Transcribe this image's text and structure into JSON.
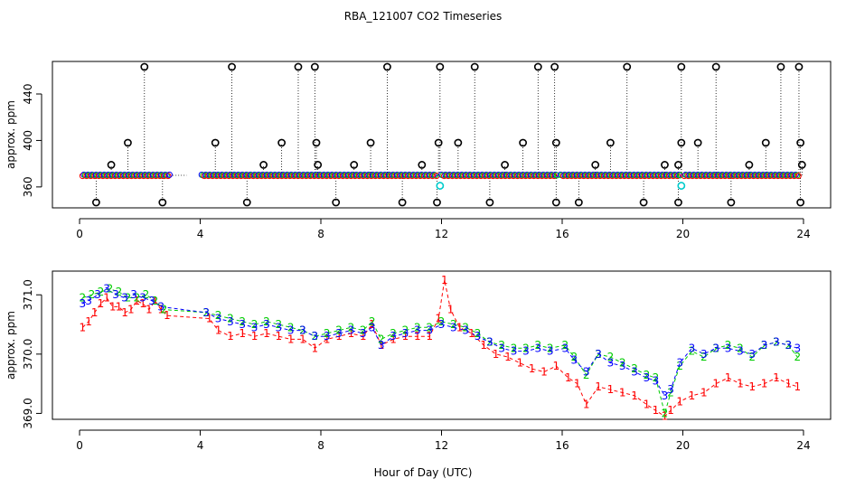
{
  "figure": {
    "title": "RBA_121007  CO2 Timeseries",
    "xlabel": "Hour of Day (UTC)"
  },
  "colors": {
    "series1": "#ff0000",
    "series2": "#00cc00",
    "series3": "#0000ff",
    "outlier": "#000000",
    "cyan": "#00cccc",
    "axis": "#000000"
  },
  "chart_data": [
    {
      "type": "scatter",
      "title": "",
      "xlabel": "",
      "ylabel": "approx. ppm",
      "xlim": [
        -0.9,
        24.9
      ],
      "ylim": [
        342,
        468
      ],
      "xticks": [
        0,
        4,
        8,
        12,
        16,
        20,
        24
      ],
      "yticks": [
        360,
        400,
        440
      ],
      "base_level": 370,
      "base_segments": [
        [
          0.1,
          3.0
        ],
        [
          4.05,
          11.85
        ],
        [
          12.0,
          15.85
        ],
        [
          15.95,
          19.95
        ],
        [
          20.05,
          23.85
        ]
      ],
      "gap_line": [
        3.0,
        3.55
      ],
      "low_markers": [
        0.55,
        2.75,
        5.55,
        8.5,
        10.7,
        11.85,
        13.6,
        15.8,
        16.55,
        18.7,
        19.85,
        21.6,
        23.9
      ],
      "high_markers": [
        2.15,
        5.05,
        7.25,
        7.8,
        10.2,
        11.95,
        13.1,
        15.2,
        15.75,
        18.15,
        19.95,
        21.1,
        23.25,
        23.85
      ],
      "mid_markers": [
        {
          "x": 1.6,
          "y": 398
        },
        {
          "x": 4.5,
          "y": 398
        },
        {
          "x": 6.7,
          "y": 398
        },
        {
          "x": 7.85,
          "y": 398
        },
        {
          "x": 9.65,
          "y": 398
        },
        {
          "x": 11.9,
          "y": 398
        },
        {
          "x": 12.55,
          "y": 398
        },
        {
          "x": 14.7,
          "y": 398
        },
        {
          "x": 15.8,
          "y": 398
        },
        {
          "x": 17.6,
          "y": 398
        },
        {
          "x": 19.95,
          "y": 398
        },
        {
          "x": 20.5,
          "y": 398
        },
        {
          "x": 22.75,
          "y": 398
        },
        {
          "x": 23.9,
          "y": 398
        },
        {
          "x": 1.05,
          "y": 379
        },
        {
          "x": 6.1,
          "y": 379
        },
        {
          "x": 7.9,
          "y": 379
        },
        {
          "x": 9.1,
          "y": 379
        },
        {
          "x": 11.35,
          "y": 379
        },
        {
          "x": 14.1,
          "y": 379
        },
        {
          "x": 17.1,
          "y": 379
        },
        {
          "x": 19.4,
          "y": 379
        },
        {
          "x": 19.85,
          "y": 379
        },
        {
          "x": 22.2,
          "y": 379
        },
        {
          "x": 23.95,
          "y": 379
        }
      ],
      "cyan_markers": [
        {
          "x": 11.95,
          "y": 361
        },
        {
          "x": 19.95,
          "y": 361
        }
      ]
    },
    {
      "type": "line",
      "title": "",
      "xlabel": "Hour of Day (UTC)",
      "ylabel": "approx. ppm",
      "xlim": [
        -0.9,
        24.9
      ],
      "ylim": [
        368.9,
        371.4
      ],
      "xticks": [
        0,
        4,
        8,
        12,
        16,
        20,
        24
      ],
      "yticks": [
        369.0,
        370.0,
        371.0
      ],
      "ytick_labels": [
        "369.0",
        "370.0",
        "371.0"
      ],
      "series": [
        {
          "name": "1",
          "label": "1",
          "points": [
            [
              0.1,
              370.45
            ],
            [
              0.3,
              370.55
            ],
            [
              0.5,
              370.7
            ],
            [
              0.7,
              370.85
            ],
            [
              0.9,
              370.95
            ],
            [
              1.1,
              370.8
            ],
            [
              1.3,
              370.8
            ],
            [
              1.5,
              370.7
            ],
            [
              1.7,
              370.75
            ],
            [
              1.9,
              370.9
            ],
            [
              2.1,
              370.85
            ],
            [
              2.3,
              370.75
            ],
            [
              2.5,
              370.9
            ],
            [
              2.7,
              370.75
            ],
            [
              2.9,
              370.65
            ],
            [
              4.3,
              370.6
            ],
            [
              4.6,
              370.4
            ],
            [
              5.0,
              370.3
            ],
            [
              5.4,
              370.35
            ],
            [
              5.8,
              370.3
            ],
            [
              6.2,
              370.35
            ],
            [
              6.6,
              370.3
            ],
            [
              7.0,
              370.25
            ],
            [
              7.4,
              370.25
            ],
            [
              7.8,
              370.1
            ],
            [
              8.2,
              370.25
            ],
            [
              8.6,
              370.3
            ],
            [
              9.0,
              370.35
            ],
            [
              9.4,
              370.3
            ],
            [
              9.7,
              370.5
            ],
            [
              10.0,
              370.15
            ],
            [
              10.4,
              370.25
            ],
            [
              10.8,
              370.3
            ],
            [
              11.2,
              370.3
            ],
            [
              11.6,
              370.3
            ],
            [
              11.9,
              370.6
            ],
            [
              12.1,
              371.25
            ],
            [
              12.3,
              370.75
            ],
            [
              12.6,
              370.45
            ],
            [
              13.0,
              370.35
            ],
            [
              13.4,
              370.15
            ],
            [
              13.8,
              370.0
            ],
            [
              14.2,
              369.95
            ],
            [
              14.6,
              369.85
            ],
            [
              15.0,
              369.75
            ],
            [
              15.4,
              369.7
            ],
            [
              15.8,
              369.8
            ],
            [
              16.2,
              369.6
            ],
            [
              16.5,
              369.5
            ],
            [
              16.8,
              369.15
            ],
            [
              17.2,
              369.45
            ],
            [
              17.6,
              369.4
            ],
            [
              18.0,
              369.35
            ],
            [
              18.4,
              369.3
            ],
            [
              18.8,
              369.15
            ],
            [
              19.1,
              369.05
            ],
            [
              19.4,
              368.95
            ],
            [
              19.6,
              369.05
            ],
            [
              19.9,
              369.2
            ],
            [
              20.3,
              369.3
            ],
            [
              20.7,
              369.35
            ],
            [
              21.1,
              369.5
            ],
            [
              21.5,
              369.6
            ],
            [
              21.9,
              369.5
            ],
            [
              22.3,
              369.45
            ],
            [
              22.7,
              369.5
            ],
            [
              23.1,
              369.6
            ],
            [
              23.5,
              369.5
            ],
            [
              23.8,
              369.45
            ]
          ]
        },
        {
          "name": "2",
          "label": "2",
          "points": [
            [
              0.1,
              370.95
            ],
            [
              0.4,
              371.0
            ],
            [
              0.7,
              371.05
            ],
            [
              1.0,
              371.1
            ],
            [
              1.3,
              371.05
            ],
            [
              1.6,
              370.95
            ],
            [
              1.9,
              370.95
            ],
            [
              2.2,
              371.0
            ],
            [
              2.5,
              370.9
            ],
            [
              2.8,
              370.75
            ],
            [
              4.2,
              370.7
            ],
            [
              4.6,
              370.65
            ],
            [
              5.0,
              370.6
            ],
            [
              5.4,
              370.55
            ],
            [
              5.8,
              370.5
            ],
            [
              6.2,
              370.55
            ],
            [
              6.6,
              370.5
            ],
            [
              7.0,
              370.45
            ],
            [
              7.4,
              370.4
            ],
            [
              7.8,
              370.3
            ],
            [
              8.2,
              370.35
            ],
            [
              8.6,
              370.4
            ],
            [
              9.0,
              370.45
            ],
            [
              9.4,
              370.4
            ],
            [
              9.7,
              370.55
            ],
            [
              10.0,
              370.25
            ],
            [
              10.4,
              370.35
            ],
            [
              10.8,
              370.4
            ],
            [
              11.2,
              370.45
            ],
            [
              11.6,
              370.45
            ],
            [
              12.0,
              370.55
            ],
            [
              12.4,
              370.5
            ],
            [
              12.8,
              370.45
            ],
            [
              13.2,
              370.35
            ],
            [
              13.6,
              370.2
            ],
            [
              14.0,
              370.15
            ],
            [
              14.4,
              370.1
            ],
            [
              14.8,
              370.1
            ],
            [
              15.2,
              370.15
            ],
            [
              15.6,
              370.1
            ],
            [
              16.1,
              370.15
            ],
            [
              16.4,
              369.95
            ],
            [
              16.8,
              369.65
            ],
            [
              17.2,
              370.0
            ],
            [
              17.6,
              369.95
            ],
            [
              18.0,
              369.85
            ],
            [
              18.4,
              369.75
            ],
            [
              18.8,
              369.65
            ],
            [
              19.1,
              369.6
            ],
            [
              19.4,
              369.0
            ],
            [
              19.6,
              369.35
            ],
            [
              19.9,
              369.8
            ],
            [
              20.3,
              370.05
            ],
            [
              20.7,
              369.95
            ],
            [
              21.1,
              370.1
            ],
            [
              21.5,
              370.15
            ],
            [
              21.9,
              370.1
            ],
            [
              22.3,
              369.95
            ],
            [
              22.7,
              370.15
            ],
            [
              23.1,
              370.2
            ],
            [
              23.5,
              370.15
            ],
            [
              23.8,
              369.95
            ]
          ]
        },
        {
          "name": "3",
          "label": "3",
          "points": [
            [
              0.1,
              370.85
            ],
            [
              0.3,
              370.9
            ],
            [
              0.6,
              371.0
            ],
            [
              0.9,
              371.1
            ],
            [
              1.2,
              371.0
            ],
            [
              1.5,
              370.95
            ],
            [
              1.8,
              371.0
            ],
            [
              2.1,
              370.95
            ],
            [
              2.4,
              370.9
            ],
            [
              2.7,
              370.8
            ],
            [
              4.2,
              370.7
            ],
            [
              4.6,
              370.6
            ],
            [
              5.0,
              370.55
            ],
            [
              5.4,
              370.5
            ],
            [
              5.8,
              370.45
            ],
            [
              6.2,
              370.5
            ],
            [
              6.6,
              370.45
            ],
            [
              7.0,
              370.4
            ],
            [
              7.4,
              370.4
            ],
            [
              7.8,
              370.3
            ],
            [
              8.2,
              370.3
            ],
            [
              8.6,
              370.35
            ],
            [
              9.0,
              370.4
            ],
            [
              9.4,
              370.35
            ],
            [
              9.7,
              370.45
            ],
            [
              10.0,
              370.15
            ],
            [
              10.4,
              370.3
            ],
            [
              10.8,
              370.35
            ],
            [
              11.2,
              370.4
            ],
            [
              11.6,
              370.4
            ],
            [
              12.0,
              370.5
            ],
            [
              12.4,
              370.45
            ],
            [
              12.8,
              370.4
            ],
            [
              13.2,
              370.3
            ],
            [
              13.6,
              370.2
            ],
            [
              14.0,
              370.1
            ],
            [
              14.4,
              370.05
            ],
            [
              14.8,
              370.05
            ],
            [
              15.2,
              370.1
            ],
            [
              15.6,
              370.05
            ],
            [
              16.1,
              370.1
            ],
            [
              16.4,
              369.9
            ],
            [
              16.8,
              369.7
            ],
            [
              17.2,
              370.0
            ],
            [
              17.6,
              369.85
            ],
            [
              18.0,
              369.8
            ],
            [
              18.4,
              369.7
            ],
            [
              18.8,
              369.6
            ],
            [
              19.1,
              369.55
            ],
            [
              19.4,
              369.3
            ],
            [
              19.6,
              369.4
            ],
            [
              19.9,
              369.85
            ],
            [
              20.3,
              370.1
            ],
            [
              20.7,
              370.0
            ],
            [
              21.1,
              370.1
            ],
            [
              21.5,
              370.1
            ],
            [
              21.9,
              370.05
            ],
            [
              22.3,
              370.0
            ],
            [
              22.7,
              370.15
            ],
            [
              23.1,
              370.2
            ],
            [
              23.5,
              370.15
            ],
            [
              23.8,
              370.1
            ]
          ]
        }
      ]
    }
  ]
}
